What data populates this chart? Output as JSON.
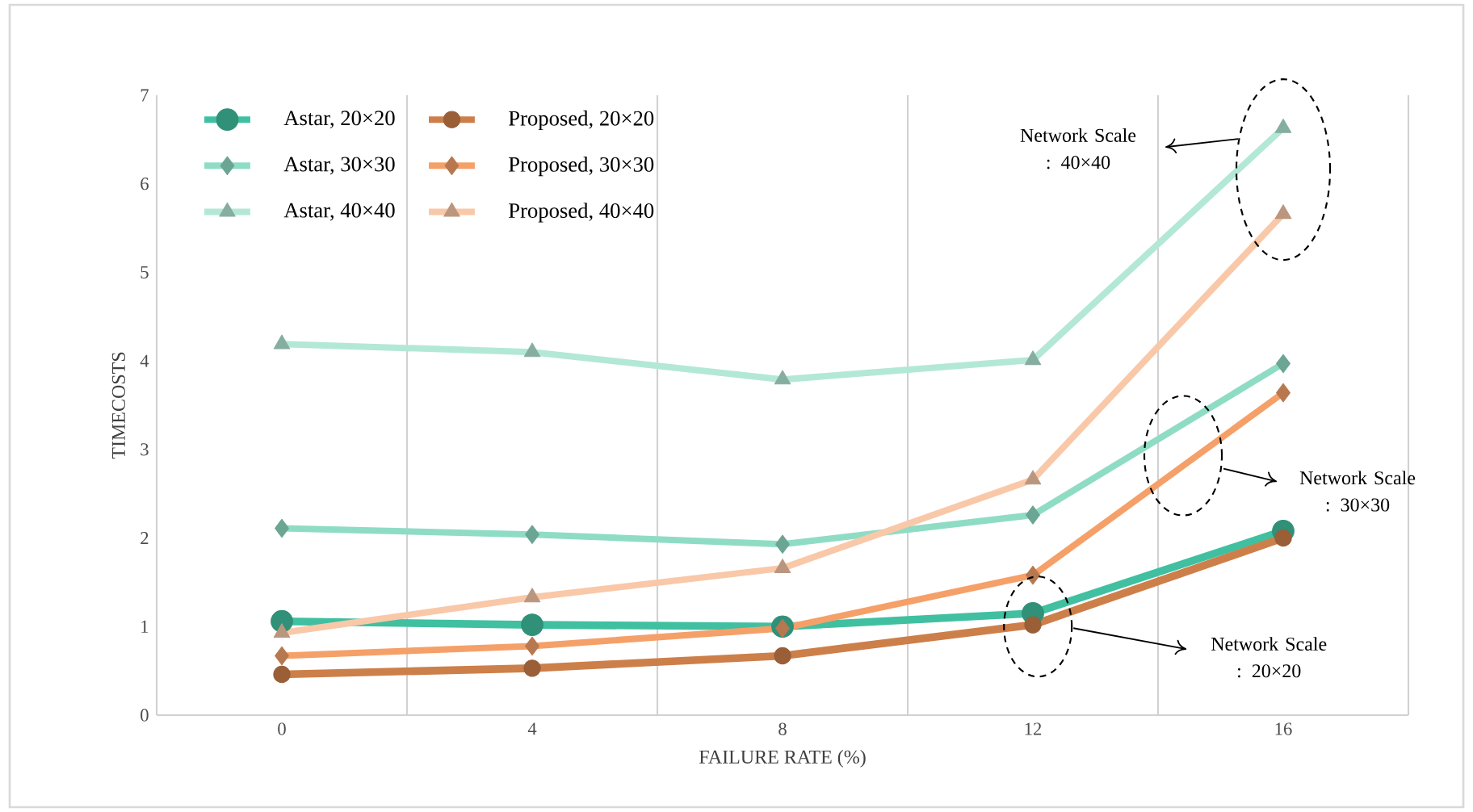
{
  "chart_data": {
    "type": "line",
    "xlabel": "FAILURE RATE (%)",
    "ylabel": "TIMECOSTS",
    "categories": [
      "0",
      "4",
      "8",
      "12",
      "16"
    ],
    "ylim": [
      0,
      7
    ],
    "yticks": [
      0,
      1,
      2,
      3,
      4,
      5,
      6,
      7
    ],
    "grid": "x",
    "legend": "top left",
    "series": [
      {
        "name": "Astar, 20×20",
        "color": "#40c0a0",
        "marker": "circle",
        "values": [
          1.06,
          1.02,
          1.0,
          1.15,
          2.08
        ]
      },
      {
        "name": "Astar, 30×30",
        "color": "#8fdcc4",
        "marker": "diamond",
        "values": [
          2.11,
          2.04,
          1.93,
          2.26,
          3.97
        ]
      },
      {
        "name": "Astar, 40×40",
        "color": "#b3e8d6",
        "marker": "triangle",
        "values": [
          4.19,
          4.1,
          3.79,
          4.01,
          6.63
        ]
      },
      {
        "name": "Proposed, 20×20",
        "color": "#cd7f4a",
        "marker": "circle",
        "values": [
          0.46,
          0.53,
          0.67,
          1.02,
          2.0
        ]
      },
      {
        "name": "Proposed, 30×30",
        "color": "#f5a069",
        "marker": "diamond",
        "values": [
          0.67,
          0.78,
          0.98,
          1.58,
          3.64
        ]
      },
      {
        "name": "Proposed, 40×40",
        "color": "#f9c8a8",
        "marker": "triangle",
        "values": [
          0.93,
          1.33,
          1.66,
          2.66,
          5.66
        ]
      }
    ],
    "annotations": [
      "Network Scale : 40×40",
      "Network Scale : 30×30",
      "Network Scale : 20×20"
    ]
  }
}
